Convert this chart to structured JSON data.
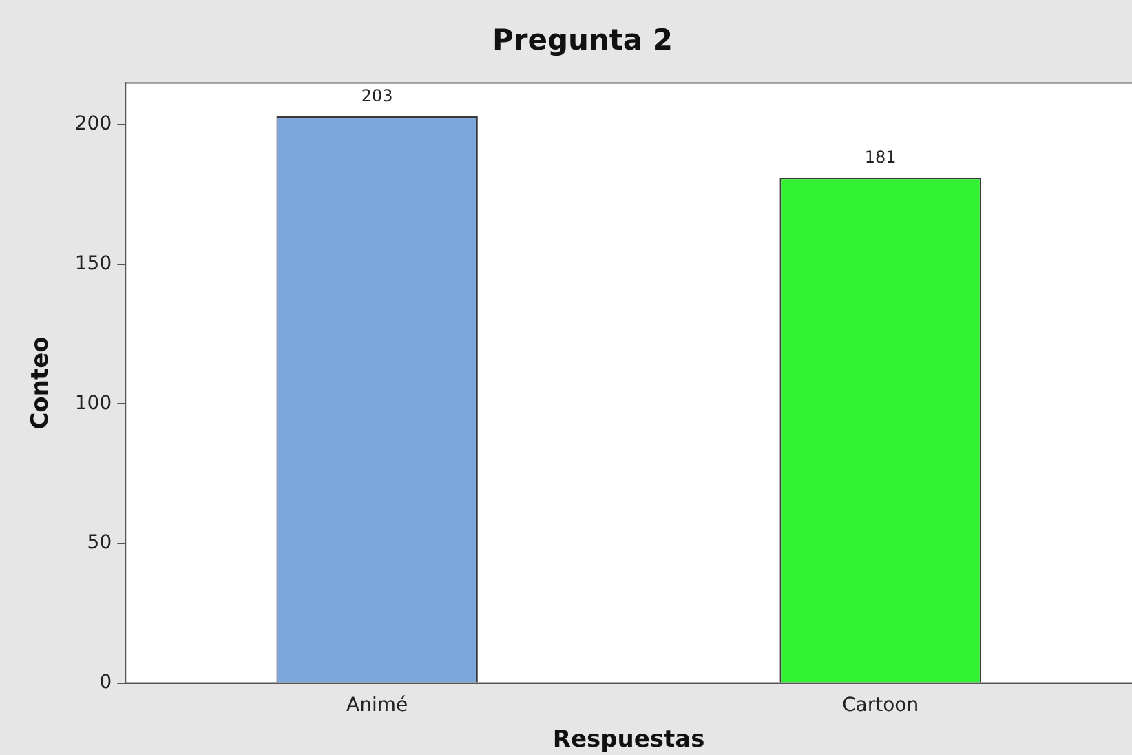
{
  "chart_data": {
    "type": "bar",
    "title": "Pregunta 2",
    "xlabel": "Respuestas",
    "ylabel": "Conteo",
    "categories": [
      "Animé",
      "Cartoon"
    ],
    "values": [
      203,
      181
    ],
    "colors": [
      "#7ba7db",
      "#33f233"
    ],
    "ylim": [
      0,
      215
    ],
    "yticks": [
      0,
      50,
      100,
      150,
      200
    ],
    "grid": false,
    "legend": false,
    "data_labels": true
  }
}
